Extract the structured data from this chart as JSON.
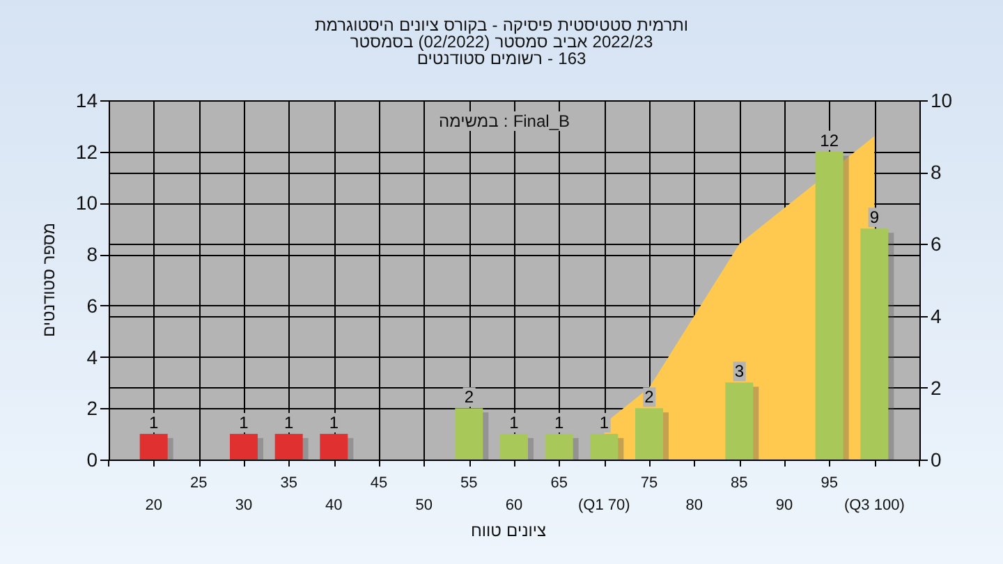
{
  "chart_data": {
    "type": "bar",
    "title": "היסטוגרמת ציונים בקורס - פיסיקה סטטיסטית ותרמית",
    "subtitle": "בסמסטר (02/2022) סמסטר אביב 2022/23\nסטודנטים רשומים - 163",
    "xlabel": "טווח ציונים",
    "ylabel": "מספר סטודנטים",
    "annotations": [
      "במשימה : Final_B"
    ],
    "categories": [
      "20",
      "25",
      "30",
      "35",
      "40",
      "45",
      "50",
      "55",
      "60",
      "65",
      "(Q1 70)",
      "75",
      "80",
      "85",
      "90",
      "95",
      "(Q3 100)"
    ],
    "series": [
      {
        "type": "area",
        "axis": "y2",
        "color": "#ffc94f",
        "values": [
          null,
          null,
          null,
          null,
          null,
          null,
          null,
          null,
          null,
          null,
          1,
          2,
          4,
          6,
          7,
          null,
          9
        ]
      },
      {
        "colors": [
          "#e03030",
          "#e03030",
          "#e03030",
          "#e03030",
          "#e03030",
          "#e03030",
          "#e03030",
          "#a8c85a",
          "#a8c85a",
          "#a8c85a",
          "#a8c85a",
          "#a8c85a",
          "#a8c85a",
          "#a8c85a",
          "#a8c85a",
          "#a8c85a",
          "#a8c85a"
        ],
        "values": [
          1,
          null,
          1,
          1,
          1,
          null,
          null,
          2,
          1,
          1,
          1,
          2,
          null,
          3,
          null,
          12,
          9
        ],
        "value_labels": [
          "1",
          null,
          "1",
          "1",
          "1",
          null,
          null,
          "2",
          "1",
          "1",
          "1",
          "2",
          null,
          "3",
          null,
          "12",
          "9"
        ]
      }
    ],
    "ylim": [
      0,
      14
    ],
    "yticks": [
      0,
      2,
      4,
      6,
      8,
      10,
      12,
      14
    ],
    "y2lim": [
      0,
      10
    ],
    "y2ticks": [
      0,
      2,
      4,
      6,
      8,
      10
    ],
    "grid": true
  }
}
